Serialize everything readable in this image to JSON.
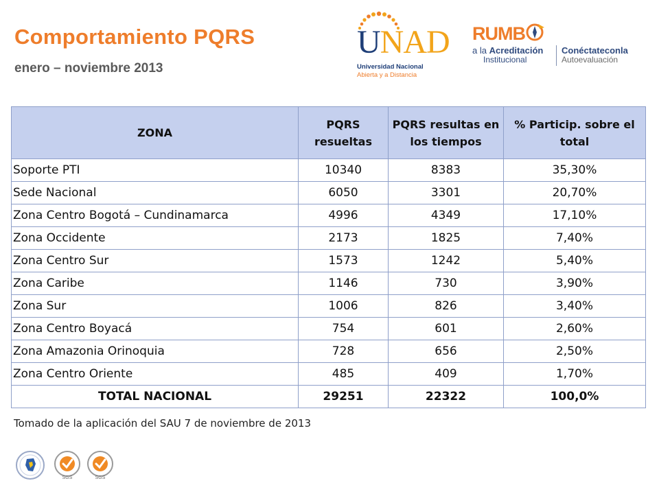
{
  "header": {
    "title": "Comportamiento PQRS",
    "subtitle": "enero – noviembre 2013"
  },
  "logos": {
    "unad": {
      "wordmark_u": "U",
      "wordmark_rest": "NAD",
      "line1": "Universidad Nacional",
      "line2": "Abierta y a Distancia"
    },
    "rumbo": {
      "brand": "RUMB",
      "left_line1_pre": "a la ",
      "left_line1_bold": "Acreditación",
      "left_line2": "Institucional",
      "right_line1": "Conéctateconla",
      "right_line2": "Autoevaluación"
    }
  },
  "table": {
    "headers": [
      "ZONA",
      "PQRS resueltas",
      "PQRS resultas en los tiempos",
      "% Particip. sobre el total"
    ],
    "rows": [
      [
        "Soporte PTI",
        "10340",
        "8383",
        "35,30%"
      ],
      [
        "Sede Nacional",
        "6050",
        "3301",
        "20,70%"
      ],
      [
        "Zona Centro Bogotá – Cundinamarca",
        "4996",
        "4349",
        "17,10%"
      ],
      [
        "Zona Occidente",
        "2173",
        "1825",
        "7,40%"
      ],
      [
        "Zona Centro Sur",
        "1573",
        "1242",
        "5,40%"
      ],
      [
        "Zona Caribe",
        "1146",
        "730",
        "3,90%"
      ],
      [
        "Zona Sur",
        "1006",
        "826",
        "3,40%"
      ],
      [
        "Zona Centro Boyacá",
        "754",
        "601",
        "2,60%"
      ],
      [
        "Zona Amazonia Orinoquia",
        "728",
        "656",
        "2,50%"
      ],
      [
        "Zona Centro Oriente",
        "485",
        "409",
        "1,70%"
      ]
    ],
    "total": [
      "TOTAL NACIONAL",
      "29251",
      "22322",
      "100,0%"
    ]
  },
  "source_note": "Tomado de la aplicación del SAU 7 de noviembre de 2013",
  "certifications": {
    "badge_text": "SGS"
  },
  "colors": {
    "title": "#ee7d2b",
    "header_fill": "#c5d0ee",
    "border": "#8e9fc9",
    "unad_blue": "#1f3f78"
  }
}
